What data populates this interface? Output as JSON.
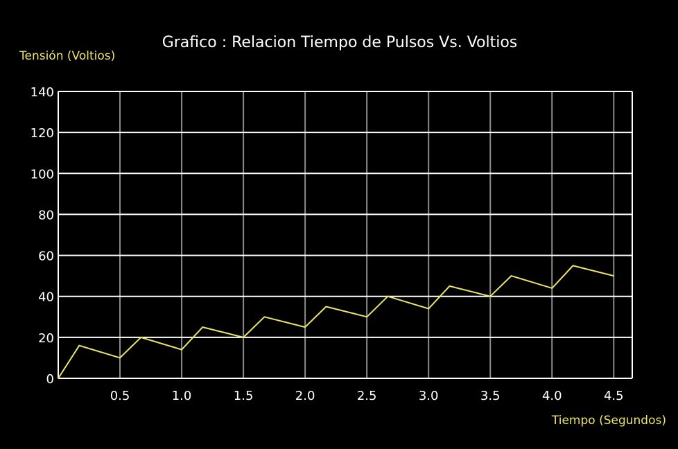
{
  "chart_data": {
    "type": "line",
    "title": "Grafico : Relacion Tiempo de Pulsos Vs. Voltios",
    "ylabel": "Tensión (Voltios)",
    "xlabel": "Tiempo (Segundos)",
    "ylim": [
      0,
      140
    ],
    "xlim": [
      0,
      4.65
    ],
    "x_ticks": [
      "0.5",
      "1.0",
      "1.5",
      "2.0",
      "2.5",
      "3.0",
      "3.5",
      "4.0",
      "4.5"
    ],
    "y_ticks": [
      "0",
      "20",
      "40",
      "60",
      "80",
      "100",
      "120",
      "140"
    ],
    "grid": true,
    "series": [
      {
        "x": [
          0,
          0.17,
          0.5,
          0.67,
          1.0,
          1.17,
          1.5,
          1.67,
          2.0,
          2.17,
          2.5,
          2.67,
          3.0,
          3.17,
          3.5,
          3.67,
          4.0,
          4.17,
          4.5
        ],
        "values": [
          0,
          16,
          10,
          20,
          14,
          25,
          20,
          30,
          25,
          35,
          30,
          40,
          34,
          45,
          40,
          50,
          44,
          55,
          50
        ]
      }
    ],
    "colors": {
      "background": "#000000",
      "line": "#ece569",
      "labels": "#ece569",
      "text": "#ffffff",
      "horizontal_grid": "#ffffff",
      "vertical_grid": "#8c8c8c"
    }
  }
}
